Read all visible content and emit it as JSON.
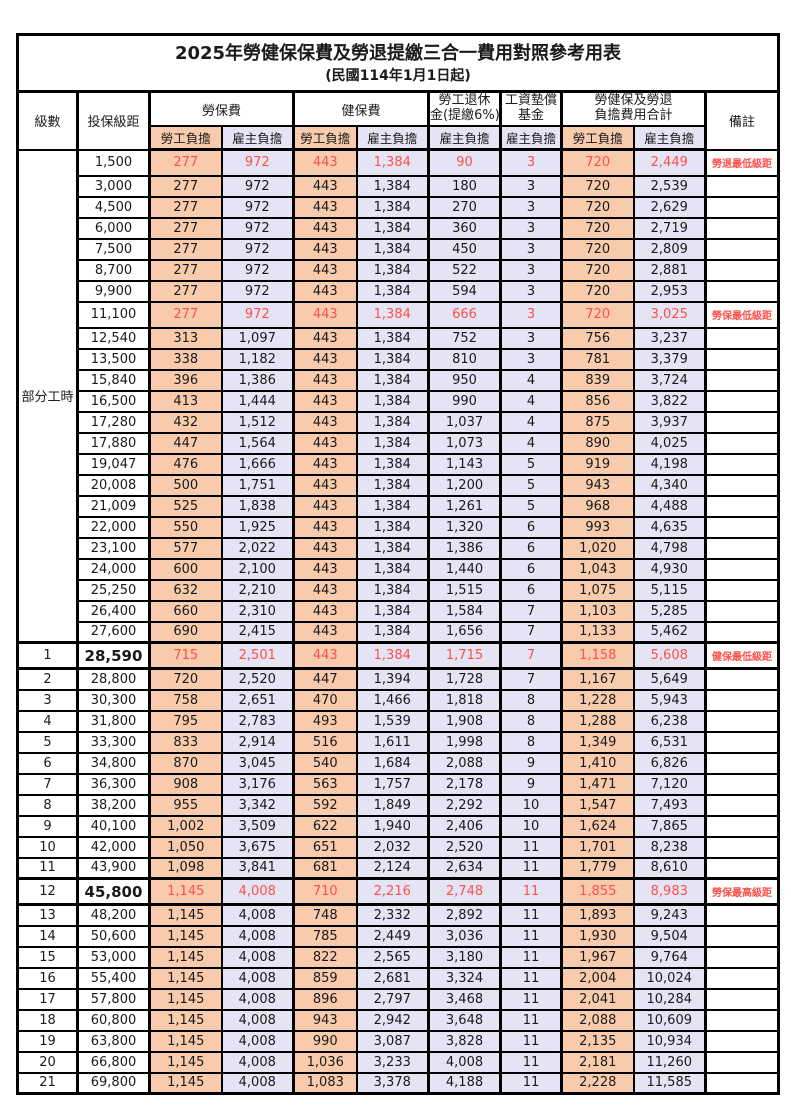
{
  "title": "2025年勞健保保費及勞退提繳三合一費用對照參考用表",
  "subtitle": "(民國114年1月1日起)",
  "colors": {
    "employee_share_bg": "#F8CBAD",
    "employer_share_bg": "#E4E4F4",
    "highlight_text": "#FF4F4A",
    "grid_border": "#000000"
  },
  "columns": {
    "level": "級數",
    "salary": "投保級距",
    "labor_group": "勞保費",
    "health_group": "健保費",
    "pension_group": [
      "勞工退休",
      "金(提繳6%)"
    ],
    "fund_group": [
      "工資墊償",
      "基金"
    ],
    "total_group": [
      "勞健保及勞退",
      "負擔費用合計"
    ],
    "note": "備註",
    "employee_share": "勞工負擔",
    "employer_share": "雇主負擔"
  },
  "part_time": {
    "label": "部分工時",
    "span": 23
  },
  "rows": [
    {
      "level": "",
      "salary": "1,500",
      "values": [
        "277",
        "972",
        "443",
        "1,384",
        "90",
        "3",
        "720",
        "2,449"
      ],
      "note": "勞退最低級距",
      "red": true
    },
    {
      "level": "",
      "salary": "3,000",
      "values": [
        "277",
        "972",
        "443",
        "1,384",
        "180",
        "3",
        "720",
        "2,539"
      ],
      "note": ""
    },
    {
      "level": "",
      "salary": "4,500",
      "values": [
        "277",
        "972",
        "443",
        "1,384",
        "270",
        "3",
        "720",
        "2,629"
      ],
      "note": ""
    },
    {
      "level": "",
      "salary": "6,000",
      "values": [
        "277",
        "972",
        "443",
        "1,384",
        "360",
        "3",
        "720",
        "2,719"
      ],
      "note": ""
    },
    {
      "level": "",
      "salary": "7,500",
      "values": [
        "277",
        "972",
        "443",
        "1,384",
        "450",
        "3",
        "720",
        "2,809"
      ],
      "note": ""
    },
    {
      "level": "",
      "salary": "8,700",
      "values": [
        "277",
        "972",
        "443",
        "1,384",
        "522",
        "3",
        "720",
        "2,881"
      ],
      "note": ""
    },
    {
      "level": "",
      "salary": "9,900",
      "values": [
        "277",
        "972",
        "443",
        "1,384",
        "594",
        "3",
        "720",
        "2,953"
      ],
      "note": ""
    },
    {
      "level": "",
      "salary": "11,100",
      "values": [
        "277",
        "972",
        "443",
        "1,384",
        "666",
        "3",
        "720",
        "3,025"
      ],
      "note": "勞保最低級距",
      "red": true
    },
    {
      "level": "",
      "salary": "12,540",
      "values": [
        "313",
        "1,097",
        "443",
        "1,384",
        "752",
        "3",
        "756",
        "3,237"
      ],
      "note": ""
    },
    {
      "level": "",
      "salary": "13,500",
      "values": [
        "338",
        "1,182",
        "443",
        "1,384",
        "810",
        "3",
        "781",
        "3,379"
      ],
      "note": ""
    },
    {
      "level": "",
      "salary": "15,840",
      "values": [
        "396",
        "1,386",
        "443",
        "1,384",
        "950",
        "4",
        "839",
        "3,724"
      ],
      "note": ""
    },
    {
      "level": "",
      "salary": "16,500",
      "values": [
        "413",
        "1,444",
        "443",
        "1,384",
        "990",
        "4",
        "856",
        "3,822"
      ],
      "note": ""
    },
    {
      "level": "",
      "salary": "17,280",
      "values": [
        "432",
        "1,512",
        "443",
        "1,384",
        "1,037",
        "4",
        "875",
        "3,937"
      ],
      "note": ""
    },
    {
      "level": "",
      "salary": "17,880",
      "values": [
        "447",
        "1,564",
        "443",
        "1,384",
        "1,073",
        "4",
        "890",
        "4,025"
      ],
      "note": ""
    },
    {
      "level": "",
      "salary": "19,047",
      "values": [
        "476",
        "1,666",
        "443",
        "1,384",
        "1,143",
        "5",
        "919",
        "4,198"
      ],
      "note": ""
    },
    {
      "level": "",
      "salary": "20,008",
      "values": [
        "500",
        "1,751",
        "443",
        "1,384",
        "1,200",
        "5",
        "943",
        "4,340"
      ],
      "note": ""
    },
    {
      "level": "",
      "salary": "21,009",
      "values": [
        "525",
        "1,838",
        "443",
        "1,384",
        "1,261",
        "5",
        "968",
        "4,488"
      ],
      "note": ""
    },
    {
      "level": "",
      "salary": "22,000",
      "values": [
        "550",
        "1,925",
        "443",
        "1,384",
        "1,320",
        "6",
        "993",
        "4,635"
      ],
      "note": ""
    },
    {
      "level": "",
      "salary": "23,100",
      "values": [
        "577",
        "2,022",
        "443",
        "1,384",
        "1,386",
        "6",
        "1,020",
        "4,798"
      ],
      "note": ""
    },
    {
      "level": "",
      "salary": "24,000",
      "values": [
        "600",
        "2,100",
        "443",
        "1,384",
        "1,440",
        "6",
        "1,043",
        "4,930"
      ],
      "note": ""
    },
    {
      "level": "",
      "salary": "25,250",
      "values": [
        "632",
        "2,210",
        "443",
        "1,384",
        "1,515",
        "6",
        "1,075",
        "5,115"
      ],
      "note": ""
    },
    {
      "level": "",
      "salary": "26,400",
      "values": [
        "660",
        "2,310",
        "443",
        "1,384",
        "1,584",
        "7",
        "1,103",
        "5,285"
      ],
      "note": ""
    },
    {
      "level": "",
      "salary": "27,600",
      "values": [
        "690",
        "2,415",
        "443",
        "1,384",
        "1,656",
        "7",
        "1,133",
        "5,462"
      ],
      "note": ""
    },
    {
      "level": "1",
      "salary": "28,590",
      "values": [
        "715",
        "2,501",
        "443",
        "1,384",
        "1,715",
        "7",
        "1,158",
        "5,608"
      ],
      "note": "健保最低級距",
      "red": true,
      "milestone": true
    },
    {
      "level": "2",
      "salary": "28,800",
      "values": [
        "720",
        "2,520",
        "447",
        "1,394",
        "1,728",
        "7",
        "1,167",
        "5,649"
      ],
      "note": ""
    },
    {
      "level": "3",
      "salary": "30,300",
      "values": [
        "758",
        "2,651",
        "470",
        "1,466",
        "1,818",
        "8",
        "1,228",
        "5,943"
      ],
      "note": ""
    },
    {
      "level": "4",
      "salary": "31,800",
      "values": [
        "795",
        "2,783",
        "493",
        "1,539",
        "1,908",
        "8",
        "1,288",
        "6,238"
      ],
      "note": ""
    },
    {
      "level": "5",
      "salary": "33,300",
      "values": [
        "833",
        "2,914",
        "516",
        "1,611",
        "1,998",
        "8",
        "1,349",
        "6,531"
      ],
      "note": ""
    },
    {
      "level": "6",
      "salary": "34,800",
      "values": [
        "870",
        "3,045",
        "540",
        "1,684",
        "2,088",
        "9",
        "1,410",
        "6,826"
      ],
      "note": ""
    },
    {
      "level": "7",
      "salary": "36,300",
      "values": [
        "908",
        "3,176",
        "563",
        "1,757",
        "2,178",
        "9",
        "1,471",
        "7,120"
      ],
      "note": ""
    },
    {
      "level": "8",
      "salary": "38,200",
      "values": [
        "955",
        "3,342",
        "592",
        "1,849",
        "2,292",
        "10",
        "1,547",
        "7,493"
      ],
      "note": ""
    },
    {
      "level": "9",
      "salary": "40,100",
      "values": [
        "1,002",
        "3,509",
        "622",
        "1,940",
        "2,406",
        "10",
        "1,624",
        "7,865"
      ],
      "note": ""
    },
    {
      "level": "10",
      "salary": "42,000",
      "values": [
        "1,050",
        "3,675",
        "651",
        "2,032",
        "2,520",
        "11",
        "1,701",
        "8,238"
      ],
      "note": ""
    },
    {
      "level": "11",
      "salary": "43,900",
      "values": [
        "1,098",
        "3,841",
        "681",
        "2,124",
        "2,634",
        "11",
        "1,779",
        "8,610"
      ],
      "note": ""
    },
    {
      "level": "12",
      "salary": "45,800",
      "values": [
        "1,145",
        "4,008",
        "710",
        "2,216",
        "2,748",
        "11",
        "1,855",
        "8,983"
      ],
      "note": "勞保最高級距",
      "red": true,
      "milestone": true
    },
    {
      "level": "13",
      "salary": "48,200",
      "values": [
        "1,145",
        "4,008",
        "748",
        "2,332",
        "2,892",
        "11",
        "1,893",
        "9,243"
      ],
      "note": ""
    },
    {
      "level": "14",
      "salary": "50,600",
      "values": [
        "1,145",
        "4,008",
        "785",
        "2,449",
        "3,036",
        "11",
        "1,930",
        "9,504"
      ],
      "note": ""
    },
    {
      "level": "15",
      "salary": "53,000",
      "values": [
        "1,145",
        "4,008",
        "822",
        "2,565",
        "3,180",
        "11",
        "1,967",
        "9,764"
      ],
      "note": ""
    },
    {
      "level": "16",
      "salary": "55,400",
      "values": [
        "1,145",
        "4,008",
        "859",
        "2,681",
        "3,324",
        "11",
        "2,004",
        "10,024"
      ],
      "note": ""
    },
    {
      "level": "17",
      "salary": "57,800",
      "values": [
        "1,145",
        "4,008",
        "896",
        "2,797",
        "3,468",
        "11",
        "2,041",
        "10,284"
      ],
      "note": ""
    },
    {
      "level": "18",
      "salary": "60,800",
      "values": [
        "1,145",
        "4,008",
        "943",
        "2,942",
        "3,648",
        "11",
        "2,088",
        "10,609"
      ],
      "note": ""
    },
    {
      "level": "19",
      "salary": "63,800",
      "values": [
        "1,145",
        "4,008",
        "990",
        "3,087",
        "3,828",
        "11",
        "2,135",
        "10,934"
      ],
      "note": ""
    },
    {
      "level": "20",
      "salary": "66,800",
      "values": [
        "1,145",
        "4,008",
        "1,036",
        "3,233",
        "4,008",
        "11",
        "2,181",
        "11,260"
      ],
      "note": ""
    },
    {
      "level": "21",
      "salary": "69,800",
      "values": [
        "1,145",
        "4,008",
        "1,083",
        "3,378",
        "4,188",
        "11",
        "2,228",
        "11,585"
      ],
      "note": ""
    }
  ]
}
